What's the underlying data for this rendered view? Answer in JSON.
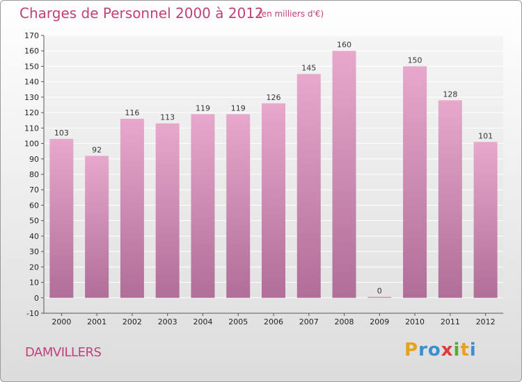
{
  "title": "Charges de Personnel 2000 à 2012",
  "subtitle": "(en milliers d'€)",
  "commune": "DAMVILLERS",
  "logo": {
    "letters": [
      "P",
      "r",
      "o",
      "x",
      "i",
      "t",
      "i"
    ],
    "colors": [
      "#e8a020",
      "#3a8fd0",
      "#3a8fd0",
      "#e03a3a",
      "#5aa83a",
      "#e8a020",
      "#3a8fd0"
    ]
  },
  "colors": {
    "bar_top": "#e8a8cc",
    "bar_bottom": "#b06e98",
    "title": "#c0407a"
  },
  "chart_data": {
    "type": "bar",
    "title": "Charges de Personnel 2000 à 2012",
    "subtitle": "(en milliers d'€)",
    "xlabel": "",
    "ylabel": "",
    "categories": [
      "2000",
      "2001",
      "2002",
      "2003",
      "2004",
      "2005",
      "2006",
      "2007",
      "2008",
      "2009",
      "2010",
      "2011",
      "2012"
    ],
    "values": [
      103,
      92,
      116,
      113,
      119,
      119,
      126,
      145,
      160,
      0,
      150,
      128,
      101
    ],
    "ylim": [
      -10,
      170
    ],
    "yticks": [
      -10,
      0,
      10,
      20,
      30,
      40,
      50,
      60,
      70,
      80,
      90,
      100,
      110,
      120,
      130,
      140,
      150,
      160,
      170
    ],
    "grid": true
  }
}
